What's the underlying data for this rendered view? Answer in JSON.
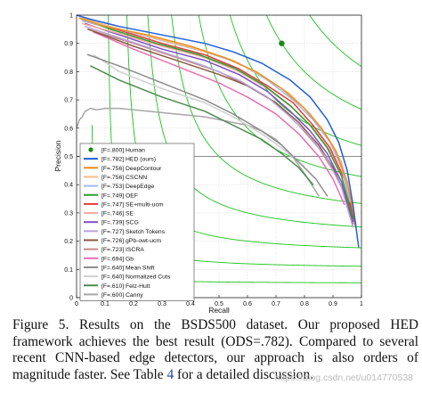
{
  "chart_data": {
    "type": "line",
    "xlabel": "Recall",
    "ylabel": "Precision",
    "xlim": [
      0,
      1
    ],
    "ylim": [
      0,
      1
    ],
    "xticks": [
      "0",
      "0.1",
      "0.2",
      "0.3",
      "0.4",
      "0.5",
      "0.6",
      "0.7",
      "0.8",
      "0.9",
      "1"
    ],
    "yticks": [
      "0",
      "0.1",
      "0.2",
      "0.3",
      "0.4",
      "0.5",
      "0.6",
      "0.7",
      "0.8",
      "0.9",
      "1"
    ],
    "grid": true,
    "legend_position": "bottom-left",
    "iso_f_contours": [
      0.1,
      0.2,
      0.3,
      0.4,
      0.5,
      0.6,
      0.7,
      0.8,
      0.9
    ],
    "iso_f_color": "#1cc21c",
    "reference_line": {
      "precision": 0.5,
      "color": "#8c8c8c"
    },
    "human": {
      "label": "[F=.800] Human",
      "recall": 0.72,
      "precision": 0.9,
      "color": "#1a8a1a"
    },
    "series": [
      {
        "name": "[F=.782] HED (ours)",
        "color": "#1f5fd8",
        "points": [
          [
            0.0,
            1.0
          ],
          [
            0.05,
            0.985
          ],
          [
            0.15,
            0.96
          ],
          [
            0.3,
            0.93
          ],
          [
            0.45,
            0.9
          ],
          [
            0.55,
            0.87
          ],
          [
            0.65,
            0.83
          ],
          [
            0.75,
            0.77
          ],
          [
            0.82,
            0.71
          ],
          [
            0.88,
            0.63
          ],
          [
            0.92,
            0.55
          ],
          [
            0.95,
            0.45
          ],
          [
            0.97,
            0.33
          ],
          [
            0.99,
            0.18
          ]
        ]
      },
      {
        "name": "[F=.756] DeepContour",
        "color": "#f28a1e",
        "points": [
          [
            0.01,
            0.99
          ],
          [
            0.1,
            0.96
          ],
          [
            0.25,
            0.93
          ],
          [
            0.4,
            0.89
          ],
          [
            0.52,
            0.85
          ],
          [
            0.63,
            0.8
          ],
          [
            0.72,
            0.74
          ],
          [
            0.8,
            0.67
          ],
          [
            0.86,
            0.6
          ],
          [
            0.91,
            0.52
          ],
          [
            0.95,
            0.41
          ],
          [
            0.98,
            0.26
          ]
        ]
      },
      {
        "name": "[F=.756] CSCNN",
        "color": "#f5bd82",
        "points": [
          [
            0.02,
            0.99
          ],
          [
            0.12,
            0.96
          ],
          [
            0.27,
            0.92
          ],
          [
            0.42,
            0.88
          ],
          [
            0.55,
            0.84
          ],
          [
            0.66,
            0.78
          ],
          [
            0.75,
            0.72
          ],
          [
            0.82,
            0.65
          ],
          [
            0.88,
            0.57
          ],
          [
            0.93,
            0.48
          ],
          [
            0.96,
            0.36
          ]
        ]
      },
      {
        "name": "[F=.753] DeepEdge",
        "color": "#9fbbe8",
        "points": [
          [
            0.02,
            0.98
          ],
          [
            0.15,
            0.95
          ],
          [
            0.3,
            0.91
          ],
          [
            0.45,
            0.87
          ],
          [
            0.57,
            0.83
          ],
          [
            0.67,
            0.77
          ],
          [
            0.76,
            0.7
          ],
          [
            0.83,
            0.63
          ],
          [
            0.89,
            0.55
          ],
          [
            0.93,
            0.46
          ],
          [
            0.96,
            0.34
          ]
        ]
      },
      {
        "name": "[F=.749] OEF",
        "color": "#2e9e2e",
        "points": [
          [
            0.01,
            0.99
          ],
          [
            0.12,
            0.95
          ],
          [
            0.28,
            0.9
          ],
          [
            0.43,
            0.86
          ],
          [
            0.56,
            0.81
          ],
          [
            0.66,
            0.75
          ],
          [
            0.75,
            0.68
          ],
          [
            0.82,
            0.61
          ],
          [
            0.88,
            0.53
          ],
          [
            0.93,
            0.43
          ],
          [
            0.97,
            0.28
          ]
        ]
      },
      {
        "name": "[F=.747] SE+multi-ucm",
        "color": "#e83a3a",
        "points": [
          [
            0.02,
            0.98
          ],
          [
            0.14,
            0.95
          ],
          [
            0.3,
            0.9
          ],
          [
            0.45,
            0.86
          ],
          [
            0.57,
            0.81
          ],
          [
            0.67,
            0.75
          ],
          [
            0.76,
            0.69
          ],
          [
            0.83,
            0.61
          ],
          [
            0.89,
            0.53
          ],
          [
            0.94,
            0.42
          ],
          [
            0.98,
            0.25
          ]
        ]
      },
      {
        "name": "[F=.746] SE",
        "color": "#f5a8a0",
        "points": [
          [
            0.02,
            0.97
          ],
          [
            0.13,
            0.94
          ],
          [
            0.3,
            0.89
          ],
          [
            0.45,
            0.85
          ],
          [
            0.57,
            0.8
          ],
          [
            0.67,
            0.74
          ],
          [
            0.76,
            0.67
          ],
          [
            0.83,
            0.6
          ],
          [
            0.89,
            0.52
          ],
          [
            0.94,
            0.42
          ],
          [
            0.98,
            0.26
          ]
        ]
      },
      {
        "name": "[F=.739] SCG",
        "color": "#7b4fc0",
        "points": [
          [
            0.03,
            0.97
          ],
          [
            0.15,
            0.93
          ],
          [
            0.3,
            0.88
          ],
          [
            0.45,
            0.84
          ],
          [
            0.57,
            0.79
          ],
          [
            0.67,
            0.73
          ],
          [
            0.75,
            0.66
          ],
          [
            0.82,
            0.59
          ],
          [
            0.88,
            0.51
          ],
          [
            0.93,
            0.41
          ],
          [
            0.97,
            0.27
          ]
        ]
      },
      {
        "name": "[F=.727] Sketch Tokens",
        "color": "#b9a3da",
        "points": [
          [
            0.03,
            0.96
          ],
          [
            0.15,
            0.92
          ],
          [
            0.3,
            0.87
          ],
          [
            0.45,
            0.82
          ],
          [
            0.57,
            0.77
          ],
          [
            0.67,
            0.71
          ],
          [
            0.75,
            0.64
          ],
          [
            0.82,
            0.57
          ],
          [
            0.88,
            0.49
          ],
          [
            0.93,
            0.39
          ],
          [
            0.97,
            0.25
          ]
        ]
      },
      {
        "name": "[F=.726] gPb-owt-ucm",
        "color": "#8a5a44",
        "points": [
          [
            0.04,
            0.95
          ],
          [
            0.2,
            0.89
          ],
          [
            0.35,
            0.84
          ],
          [
            0.5,
            0.79
          ],
          [
            0.6,
            0.75
          ],
          [
            0.7,
            0.69
          ],
          [
            0.78,
            0.62
          ],
          [
            0.85,
            0.54
          ],
          [
            0.9,
            0.46
          ],
          [
            0.94,
            0.37
          ],
          [
            0.97,
            0.26
          ]
        ]
      },
      {
        "name": "[F=.723] ISCRA",
        "color": "#c48a8a",
        "points": [
          [
            0.04,
            0.95
          ],
          [
            0.2,
            0.9
          ],
          [
            0.35,
            0.85
          ],
          [
            0.5,
            0.8
          ],
          [
            0.6,
            0.75
          ],
          [
            0.7,
            0.69
          ],
          [
            0.78,
            0.61
          ],
          [
            0.85,
            0.53
          ],
          [
            0.9,
            0.45
          ]
        ]
      },
      {
        "name": "[F=.694] Gb",
        "color": "#e86fb0",
        "points": [
          [
            0.06,
            0.94
          ],
          [
            0.2,
            0.88
          ],
          [
            0.35,
            0.82
          ],
          [
            0.5,
            0.76
          ],
          [
            0.6,
            0.71
          ],
          [
            0.7,
            0.65
          ],
          [
            0.78,
            0.58
          ],
          [
            0.85,
            0.5
          ],
          [
            0.9,
            0.42
          ],
          [
            0.94,
            0.33
          ]
        ]
      },
      {
        "name": "[F=.640] Mean Shift",
        "color": "#8c8c8c",
        "points": [
          [
            0.04,
            0.86
          ],
          [
            0.15,
            0.82
          ],
          [
            0.3,
            0.76
          ],
          [
            0.45,
            0.7
          ],
          [
            0.55,
            0.65
          ],
          [
            0.65,
            0.59
          ],
          [
            0.72,
            0.54
          ],
          [
            0.78,
            0.48
          ],
          [
            0.84,
            0.42
          ],
          [
            0.88,
            0.36
          ]
        ]
      },
      {
        "name": "[F=.640] Normalized Cuts",
        "color": "#cfcfcf",
        "points": [
          [
            0.06,
            0.86
          ],
          [
            0.15,
            0.8
          ],
          [
            0.3,
            0.74
          ],
          [
            0.45,
            0.69
          ],
          [
            0.55,
            0.64
          ],
          [
            0.65,
            0.58
          ],
          [
            0.72,
            0.53
          ],
          [
            0.78,
            0.48
          ],
          [
            0.83,
            0.43
          ]
        ]
      },
      {
        "name": "[F=.610] Felz-Hutt",
        "color": "#4e8a4e",
        "points": [
          [
            0.05,
            0.82
          ],
          [
            0.15,
            0.77
          ],
          [
            0.3,
            0.71
          ],
          [
            0.45,
            0.66
          ],
          [
            0.55,
            0.61
          ],
          [
            0.65,
            0.56
          ],
          [
            0.72,
            0.51
          ],
          [
            0.78,
            0.46
          ],
          [
            0.83,
            0.4
          ]
        ]
      },
      {
        "name": "[F=.600] Canny",
        "color": "#a6a6a6",
        "points": [
          [
            0.0,
            0.6
          ],
          [
            0.01,
            0.63
          ],
          [
            0.02,
            0.64
          ],
          [
            0.03,
            0.66
          ],
          [
            0.05,
            0.67
          ],
          [
            0.07,
            0.665
          ],
          [
            0.1,
            0.67
          ],
          [
            0.15,
            0.67
          ],
          [
            0.2,
            0.665
          ],
          [
            0.25,
            0.66
          ],
          [
            0.3,
            0.655
          ],
          [
            0.35,
            0.65
          ],
          [
            0.4,
            0.645
          ],
          [
            0.45,
            0.64
          ],
          [
            0.5,
            0.63
          ],
          [
            0.55,
            0.62
          ],
          [
            0.6,
            0.61
          ],
          [
            0.65,
            0.59
          ],
          [
            0.7,
            0.56
          ],
          [
            0.75,
            0.51
          ],
          [
            0.8,
            0.44
          ],
          [
            0.85,
            0.36
          ]
        ]
      }
    ]
  },
  "caption": {
    "figure_label": "Figure 5.",
    "text_1": " Results on the BSDS500 dataset. Our proposed HED framework achieves the best result (ODS=.782). Compared to several recent CNN-based edge detectors, our approach is also orders of magnitude faster. See Table ",
    "table_ref": "4",
    "text_2": " for a detailed discussion."
  },
  "watermark": "https://blog.csdn.net/u014770538"
}
